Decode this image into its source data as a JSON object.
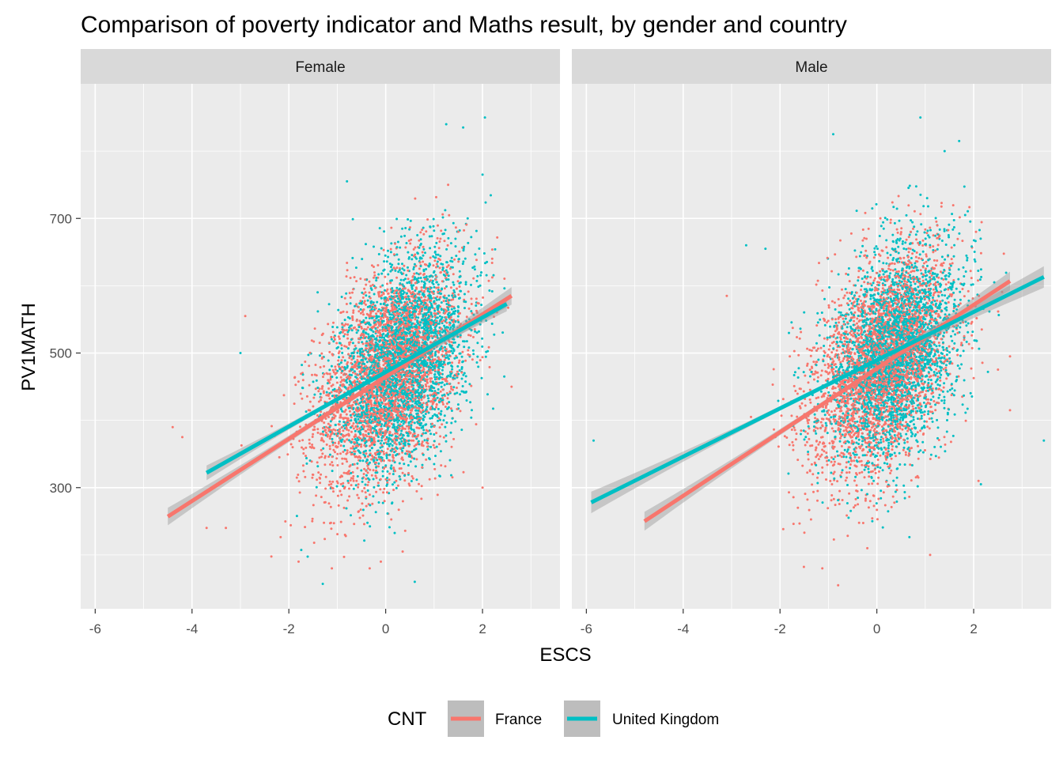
{
  "chart_data": {
    "type": "scatter",
    "title": "Comparison of poverty indicator and Maths result, by gender and country",
    "xlabel": "ESCS",
    "ylabel": "PV1MATH",
    "xlim": [
      -6.3,
      3.6
    ],
    "ylim": [
      120,
      900
    ],
    "x_ticks": [
      -6,
      -4,
      -2,
      0,
      2
    ],
    "x_tick_labels": [
      "-6",
      "-4",
      "-2",
      "0",
      "2"
    ],
    "y_ticks": [
      300,
      500,
      700
    ],
    "y_tick_labels": [
      "300",
      "500",
      "700"
    ],
    "grid": true,
    "legend": {
      "title": "CNT",
      "position": "bottom",
      "entries": [
        "France",
        "United Kingdom"
      ]
    },
    "colors": {
      "France": "#F8766D",
      "United Kingdom": "#00BFC4",
      "panel_background": "#EBEBEB",
      "strip_background": "#D9D9D9",
      "confidence_band": "#999999"
    },
    "facets": [
      {
        "label": "Female",
        "series": [
          {
            "name": "France",
            "trend_line": {
              "x": [
                -4.5,
                2.6
              ],
              "y": [
                257,
                585
              ]
            },
            "band_halfwidth": {
              "at_ends": 13,
              "at_center": 4
            },
            "outliers": [
              [
                -4.4,
                390
              ],
              [
                -4.2,
                375
              ],
              [
                -3.7,
                240
              ],
              [
                -3.3,
                240
              ],
              [
                -2.9,
                555
              ],
              [
                -1.8,
                190
              ],
              [
                -0.1,
                190
              ],
              [
                0.35,
                205
              ],
              [
                2.0,
                300
              ],
              [
                2.2,
                640
              ],
              [
                2.6,
                450
              ]
            ]
          },
          {
            "name": "United Kingdom",
            "trend_line": {
              "x": [
                -3.7,
                2.5
              ],
              "y": [
                322,
                573
              ]
            },
            "band_halfwidth": {
              "at_ends": 11,
              "at_center": 3
            },
            "outliers": [
              [
                -3.0,
                500
              ],
              [
                -1.3,
                157
              ],
              [
                -0.8,
                755
              ],
              [
                0.6,
                160
              ],
              [
                1.25,
                840
              ],
              [
                1.6,
                835
              ],
              [
                2.0,
                765
              ],
              [
                2.05,
                850
              ],
              [
                2.45,
                465
              ]
            ]
          }
        ]
      },
      {
        "label": "Male",
        "series": [
          {
            "name": "France",
            "trend_line": {
              "x": [
                -4.8,
                2.75
              ],
              "y": [
                250,
                607
              ]
            },
            "band_halfwidth": {
              "at_ends": 14,
              "at_center": 4
            },
            "outliers": [
              [
                -3.1,
                585
              ],
              [
                -2.6,
                405
              ],
              [
                -0.8,
                155
              ],
              [
                1.1,
                200
              ],
              [
                2.1,
                310
              ],
              [
                2.75,
                415
              ],
              [
                2.75,
                495
              ]
            ]
          },
          {
            "name": "United Kingdom",
            "trend_line": {
              "x": [
                -5.9,
                3.45
              ],
              "y": [
                278,
                613
              ]
            },
            "band_halfwidth": {
              "at_ends": 16,
              "at_center": 3
            },
            "outliers": [
              [
                -5.85,
                370
              ],
              [
                -0.9,
                825
              ],
              [
                1.4,
                800
              ],
              [
                0.9,
                850
              ],
              [
                1.7,
                815
              ],
              [
                2.15,
                305
              ],
              [
                3.45,
                370
              ],
              [
                -2.3,
                655
              ],
              [
                -2.7,
                660
              ]
            ]
          }
        ]
      }
    ],
    "point_cloud": {
      "points_per_series_per_facet": 3000,
      "France": {
        "x_mean": 0.05,
        "x_sd": 0.75
      },
      "United Kingdom": {
        "x_mean": 0.35,
        "x_sd": 0.68
      },
      "y_residual_sd": 75
    }
  }
}
